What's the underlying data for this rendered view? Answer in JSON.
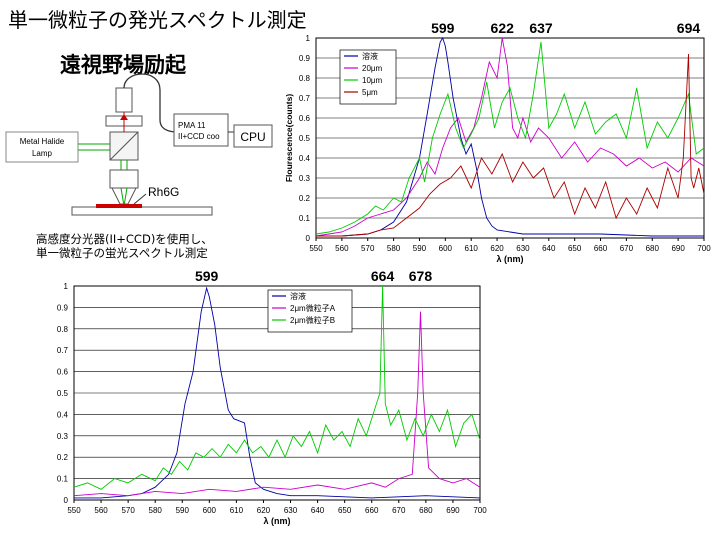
{
  "slide": {
    "title": "単一微粒子の発光スペクトル測定",
    "subtitle": "遠視野場励起",
    "caption_lines": [
      "高感度分光器(II+CCD)を使用し、",
      "単一微粒子の蛍光スペクトル測定"
    ]
  },
  "diagram": {
    "lamp_label": [
      "Metal Halide",
      "Lamp"
    ],
    "detector_label": [
      "PMA 11",
      "II+CCD coo"
    ],
    "cpu_label": "CPU",
    "sample_label": "Rh6G"
  },
  "chart_data": [
    {
      "type": "line",
      "ylabel": "Flourescence(counts)",
      "xlabel": "λ (nm)",
      "xlim": [
        550,
        700
      ],
      "ylim": [
        0,
        1
      ],
      "x_ticks": [
        550,
        560,
        570,
        580,
        590,
        600,
        610,
        620,
        630,
        640,
        650,
        660,
        670,
        680,
        690,
        700
      ],
      "y_ticks": [
        0,
        0.1,
        0.2,
        0.3,
        0.4,
        0.5,
        0.6,
        0.7,
        0.8,
        0.9,
        1
      ],
      "legend_position": "top-left",
      "annotations": [
        {
          "x": 599,
          "label": "599"
        },
        {
          "x": 622,
          "label": "622"
        },
        {
          "x": 637,
          "label": "637"
        },
        {
          "x": 694,
          "label": "694"
        }
      ],
      "series": [
        {
          "name": "溶液",
          "color": "#0000aa",
          "x": [
            550,
            560,
            570,
            575,
            580,
            585,
            590,
            593,
            596,
            598,
            599,
            600,
            601,
            603,
            606,
            608,
            610,
            612,
            614,
            616,
            618,
            620,
            625,
            630,
            640,
            660,
            680,
            700
          ],
          "y": [
            0.01,
            0.01,
            0.02,
            0.04,
            0.08,
            0.18,
            0.4,
            0.62,
            0.85,
            0.98,
            1.0,
            0.96,
            0.88,
            0.7,
            0.5,
            0.42,
            0.47,
            0.35,
            0.2,
            0.1,
            0.06,
            0.04,
            0.03,
            0.02,
            0.02,
            0.02,
            0.01,
            0.01
          ]
        },
        {
          "name": "20μm",
          "color": "#cc00cc",
          "x": [
            550,
            555,
            560,
            565,
            570,
            575,
            580,
            585,
            590,
            593,
            596,
            599,
            602,
            605,
            608,
            611,
            614,
            617,
            620,
            622,
            624,
            626,
            628,
            630,
            633,
            636,
            640,
            645,
            650,
            655,
            660,
            665,
            670,
            675,
            680,
            685,
            690,
            695,
            700
          ],
          "y": [
            0.01,
            0.02,
            0.03,
            0.06,
            0.1,
            0.12,
            0.14,
            0.2,
            0.3,
            0.38,
            0.32,
            0.45,
            0.55,
            0.6,
            0.48,
            0.55,
            0.7,
            0.88,
            0.8,
            1.0,
            0.86,
            0.55,
            0.5,
            0.6,
            0.48,
            0.55,
            0.5,
            0.4,
            0.48,
            0.38,
            0.45,
            0.42,
            0.36,
            0.4,
            0.35,
            0.38,
            0.33,
            0.4,
            0.36
          ]
        },
        {
          "name": "10μm",
          "color": "#00cc00",
          "x": [
            550,
            555,
            560,
            565,
            570,
            573,
            576,
            580,
            583,
            586,
            590,
            592,
            595,
            598,
            601,
            604,
            607,
            610,
            613,
            616,
            619,
            622,
            625,
            628,
            631,
            634,
            637,
            640,
            643,
            646,
            650,
            654,
            658,
            662,
            666,
            670,
            674,
            678,
            682,
            686,
            690,
            694,
            697,
            700
          ],
          "y": [
            0.02,
            0.03,
            0.05,
            0.08,
            0.12,
            0.16,
            0.14,
            0.2,
            0.18,
            0.3,
            0.4,
            0.28,
            0.5,
            0.62,
            0.72,
            0.55,
            0.45,
            0.52,
            0.6,
            0.78,
            0.55,
            0.68,
            0.75,
            0.6,
            0.5,
            0.72,
            0.98,
            0.55,
            0.62,
            0.72,
            0.55,
            0.68,
            0.52,
            0.58,
            0.62,
            0.5,
            0.75,
            0.45,
            0.58,
            0.5,
            0.6,
            0.72,
            0.42,
            0.45
          ]
        },
        {
          "name": "5μm",
          "color": "#aa0000",
          "x": [
            550,
            560,
            570,
            575,
            580,
            585,
            590,
            594,
            598,
            602,
            606,
            610,
            614,
            618,
            622,
            626,
            630,
            634,
            638,
            642,
            646,
            650,
            654,
            658,
            662,
            666,
            670,
            674,
            678,
            682,
            686,
            690,
            692,
            694,
            695,
            696,
            698,
            700
          ],
          "y": [
            0.01,
            0.01,
            0.02,
            0.04,
            0.05,
            0.1,
            0.15,
            0.22,
            0.27,
            0.3,
            0.36,
            0.25,
            0.4,
            0.32,
            0.42,
            0.28,
            0.38,
            0.3,
            0.35,
            0.2,
            0.28,
            0.12,
            0.25,
            0.15,
            0.28,
            0.1,
            0.2,
            0.12,
            0.25,
            0.15,
            0.35,
            0.2,
            0.4,
            0.92,
            0.3,
            0.25,
            0.35,
            0.22
          ]
        }
      ]
    },
    {
      "type": "line",
      "xlabel": "λ (nm)",
      "xlim": [
        550,
        700
      ],
      "ylim": [
        0,
        1
      ],
      "x_ticks": [
        550,
        560,
        570,
        580,
        590,
        600,
        610,
        620,
        630,
        640,
        650,
        660,
        670,
        680,
        690,
        700
      ],
      "y_ticks": [
        0,
        0.1,
        0.2,
        0.3,
        0.4,
        0.5,
        0.6,
        0.7,
        0.8,
        0.9,
        1
      ],
      "legend_position": "top-right",
      "annotations": [
        {
          "x": 599,
          "label": "599"
        },
        {
          "x": 664,
          "label": "664"
        },
        {
          "x": 678,
          "label": "678"
        }
      ],
      "series": [
        {
          "name": "溶液",
          "color": "#0000aa",
          "x": [
            550,
            560,
            570,
            575,
            580,
            585,
            588,
            591,
            594,
            597,
            599,
            600,
            602,
            604,
            607,
            609,
            611,
            613,
            615,
            617,
            620,
            625,
            630,
            640,
            660,
            680,
            700
          ],
          "y": [
            0.01,
            0.01,
            0.02,
            0.03,
            0.06,
            0.12,
            0.22,
            0.45,
            0.6,
            0.88,
            0.99,
            0.95,
            0.82,
            0.62,
            0.42,
            0.38,
            0.37,
            0.36,
            0.2,
            0.08,
            0.05,
            0.03,
            0.02,
            0.02,
            0.01,
            0.02,
            0.01
          ]
        },
        {
          "name": "2μm微粒子A",
          "color": "#cc00cc",
          "x": [
            550,
            560,
            570,
            580,
            590,
            600,
            610,
            620,
            630,
            640,
            650,
            660,
            665,
            670,
            675,
            677,
            678,
            679,
            681,
            685,
            690,
            695,
            700
          ],
          "y": [
            0.02,
            0.03,
            0.02,
            0.04,
            0.03,
            0.05,
            0.04,
            0.06,
            0.05,
            0.07,
            0.05,
            0.08,
            0.06,
            0.1,
            0.12,
            0.5,
            0.88,
            0.5,
            0.15,
            0.1,
            0.08,
            0.1,
            0.06
          ]
        },
        {
          "name": "2μm微粒子B",
          "color": "#00cc00",
          "x": [
            550,
            555,
            560,
            565,
            570,
            575,
            580,
            583,
            586,
            589,
            592,
            595,
            598,
            601,
            604,
            607,
            610,
            613,
            616,
            619,
            622,
            625,
            628,
            631,
            634,
            637,
            640,
            643,
            646,
            649,
            652,
            655,
            658,
            661,
            663,
            664,
            665,
            667,
            670,
            673,
            676,
            679,
            682,
            685,
            688,
            691,
            694,
            697,
            700
          ],
          "y": [
            0.06,
            0.08,
            0.05,
            0.1,
            0.08,
            0.12,
            0.09,
            0.15,
            0.12,
            0.18,
            0.14,
            0.22,
            0.2,
            0.24,
            0.2,
            0.26,
            0.22,
            0.28,
            0.22,
            0.25,
            0.2,
            0.28,
            0.2,
            0.3,
            0.25,
            0.32,
            0.22,
            0.35,
            0.28,
            0.32,
            0.25,
            0.38,
            0.3,
            0.42,
            0.5,
            1.0,
            0.45,
            0.35,
            0.42,
            0.28,
            0.38,
            0.3,
            0.4,
            0.32,
            0.42,
            0.25,
            0.36,
            0.4,
            0.28
          ]
        }
      ]
    }
  ]
}
